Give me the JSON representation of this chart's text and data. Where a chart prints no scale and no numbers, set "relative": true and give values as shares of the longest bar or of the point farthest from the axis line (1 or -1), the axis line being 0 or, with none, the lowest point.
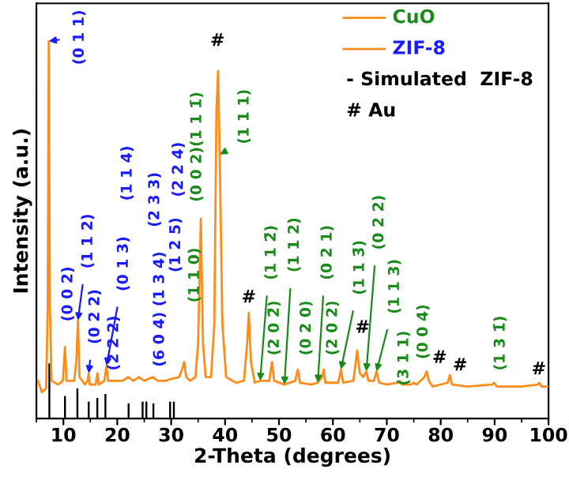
{
  "chart_data": {
    "type": "line",
    "relative": true,
    "xlabel": "2-Theta (degrees)",
    "ylabel": "Intensity (a.u.)",
    "xlim": [
      5,
      100
    ],
    "xticks": [
      10,
      20,
      30,
      40,
      50,
      60,
      70,
      80,
      90,
      100
    ],
    "grid": false,
    "marker": "none",
    "line_style": "solid",
    "series": [
      {
        "color": "#ff8c1a",
        "x": [
          5.3,
          6.0,
          6.8,
          7.1,
          7.3,
          7.5,
          7.8,
          9.0,
          9.9,
          10.3,
          10.6,
          12.0,
          12.4,
          12.7,
          13.0,
          14.0,
          14.5,
          14.7,
          14.9,
          16.0,
          16.3,
          16.6,
          17.6,
          18.0,
          18.3,
          19.5,
          21,
          22,
          23,
          24,
          25,
          26.6,
          27.5,
          29,
          30,
          31.5,
          32.0,
          32.4,
          32.8,
          33.5,
          34.5,
          35.0,
          35.5,
          35.9,
          36.4,
          37.4,
          38.0,
          38.4,
          38.7,
          39.0,
          39.5,
          40.2,
          42,
          43.5,
          44.1,
          44.4,
          44.8,
          45.5,
          46.5,
          48.2,
          48.7,
          49.1,
          51,
          53.0,
          53.5,
          53.9,
          56,
          57.2,
          58.0,
          58.3,
          58.6,
          61.0,
          61.5,
          61.9,
          63.8,
          64.5,
          65.0,
          65.6,
          66.2,
          66.6,
          67.6,
          68.1,
          68.6,
          70,
          72.0,
          72.4,
          72.8,
          74.5,
          75.0,
          75.5,
          77.0,
          77.4,
          77.8,
          78.5,
          81.3,
          81.7,
          82.1,
          85,
          89.5,
          89.9,
          90.4,
          95,
          98,
          98.3,
          98.7,
          100
        ],
        "values": [
          0.1,
          0.07,
          0.08,
          0.3,
          1.0,
          0.3,
          0.1,
          0.09,
          0.1,
          0.19,
          0.1,
          0.1,
          0.15,
          0.26,
          0.11,
          0.09,
          0.1,
          0.12,
          0.09,
          0.09,
          0.12,
          0.09,
          0.1,
          0.14,
          0.1,
          0.1,
          0.1,
          0.11,
          0.1,
          0.11,
          0.1,
          0.11,
          0.1,
          0.1,
          0.105,
          0.11,
          0.13,
          0.15,
          0.11,
          0.1,
          0.11,
          0.2,
          0.53,
          0.2,
          0.11,
          0.11,
          0.25,
          0.82,
          0.92,
          0.7,
          0.25,
          0.11,
          0.095,
          0.1,
          0.2,
          0.28,
          0.15,
          0.095,
          0.1,
          0.1,
          0.15,
          0.1,
          0.09,
          0.1,
          0.13,
          0.095,
          0.09,
          0.095,
          0.11,
          0.13,
          0.095,
          0.095,
          0.13,
          0.095,
          0.1,
          0.18,
          0.12,
          0.11,
          0.125,
          0.1,
          0.1,
          0.125,
          0.095,
          0.09,
          0.095,
          0.1,
          0.09,
          0.09,
          0.095,
          0.09,
          0.11,
          0.125,
          0.1,
          0.085,
          0.095,
          0.115,
          0.09,
          0.085,
          0.09,
          0.095,
          0.085,
          0.085,
          0.09,
          0.095,
          0.085,
          0.085
        ]
      },
      {
        "type": "bar",
        "color": "#000000",
        "x": [
          7.4,
          10.3,
          12.6,
          14.7,
          16.3,
          17.8,
          22.1,
          24.7,
          25.4,
          26.7,
          29.8,
          30.5
        ],
        "values": [
          0.146,
          0.06,
          0.08,
          0.045,
          0.055,
          0.065,
          0.04,
          0.045,
          0.045,
          0.04,
          0.045,
          0.045
        ]
      }
    ],
    "annotations": [
      "CuO",
      "ZIF-8",
      "- Simulated  ZIF-8",
      "# Au",
      {
        "text": "(0 1 1)",
        "x": 7.3,
        "y": 1.0
      },
      "(0 0 2)",
      {
        "text": "(1 1 2)",
        "x": 12.7,
        "y": 0.26
      },
      {
        "text": "(0 2 2)",
        "x": 14.7,
        "y": 0.12
      },
      "(2 2 2)",
      {
        "text": "(0 1 3)",
        "x": 18.0,
        "y": 0.14
      },
      "(1 1 4)",
      "(2 3 3)",
      "(2 2 4)",
      "(1 3 4)",
      "(6 0 4)",
      "(1 2 5)",
      "(1 1 0)",
      "(0 0 2)(1 1 1̄)",
      "#",
      {
        "text": "(1 1 1)",
        "x": 39.0,
        "y": 0.7
      },
      "#",
      {
        "text": "(1 1 2̄)",
        "x": 46.5,
        "y": 0.1
      },
      "(2 0 2̄)",
      {
        "text": "(1 1 2)",
        "x": 51,
        "y": 0.09
      },
      "(0 2 0)",
      {
        "text": "(0 2 1)",
        "x": 57.2,
        "y": 0.095
      },
      "(2 0 2)",
      {
        "text": "(1 1 3̄)",
        "x": 61.5,
        "y": 0.13
      },
      "#",
      {
        "text": "(0 2 2)",
        "x": 66.2,
        "y": 0.125
      },
      {
        "text": "(1 1 3)",
        "x": 68.1,
        "y": 0.125
      },
      "(3 1 1)",
      "(0 0 4)",
      "#",
      "#",
      "(1 3 1̄)",
      "#"
    ]
  }
}
